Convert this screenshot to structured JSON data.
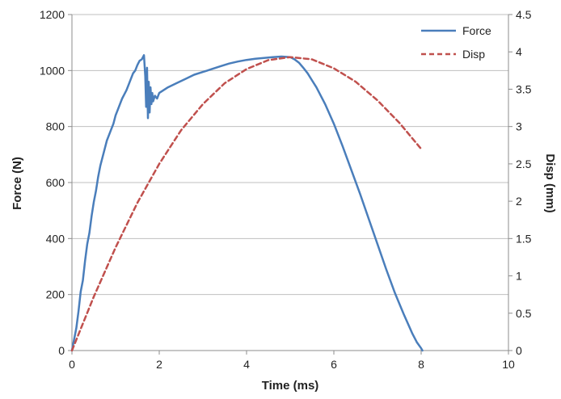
{
  "chart_data": {
    "type": "line",
    "xlabel": "Time (ms)",
    "ylabel": "Force (N)",
    "y2label": "Disp (mm)",
    "xlim": [
      0,
      10
    ],
    "ylim": [
      0,
      1200
    ],
    "y2lim": [
      0,
      4.5
    ],
    "xticks": [
      0,
      2,
      4,
      6,
      8,
      10
    ],
    "yticks": [
      0,
      200,
      400,
      600,
      800,
      1000,
      1200
    ],
    "y2ticks": [
      "0",
      "0.5",
      "1",
      "1.5",
      "2",
      "2.5",
      "3",
      "3.5",
      "4",
      "4.5"
    ],
    "grid": "horizontal",
    "legend_position": "top-right",
    "colors": {
      "force": "#4a7ebb",
      "disp": "#c0504d",
      "grid": "#bfbfbf",
      "axis": "#8c8c8c"
    },
    "series": [
      {
        "name": "Force",
        "axis": "left",
        "style": "solid",
        "x": [
          0,
          0.05,
          0.1,
          0.15,
          0.2,
          0.25,
          0.3,
          0.35,
          0.4,
          0.45,
          0.5,
          0.55,
          0.6,
          0.65,
          0.7,
          0.75,
          0.8,
          0.85,
          0.9,
          0.95,
          1.0,
          1.05,
          1.1,
          1.15,
          1.2,
          1.25,
          1.3,
          1.35,
          1.4,
          1.45,
          1.5,
          1.55,
          1.6,
          1.65,
          1.68,
          1.7,
          1.72,
          1.74,
          1.76,
          1.78,
          1.8,
          1.82,
          1.84,
          1.86,
          1.9,
          1.95,
          2.0,
          2.2,
          2.4,
          2.6,
          2.8,
          3.0,
          3.2,
          3.4,
          3.6,
          3.8,
          4.0,
          4.2,
          4.4,
          4.6,
          4.8,
          5.0,
          5.1,
          5.2,
          5.3,
          5.4,
          5.5,
          5.6,
          5.8,
          6.0,
          6.2,
          6.4,
          6.6,
          6.8,
          7.0,
          7.2,
          7.4,
          7.6,
          7.8,
          7.9,
          8.0,
          8.03
        ],
        "values": [
          0,
          40,
          80,
          140,
          210,
          250,
          320,
          380,
          420,
          480,
          530,
          570,
          620,
          660,
          690,
          720,
          750,
          770,
          790,
          810,
          840,
          860,
          880,
          900,
          915,
          930,
          950,
          970,
          990,
          1000,
          1020,
          1035,
          1040,
          1055,
          980,
          870,
          1010,
          830,
          960,
          850,
          940,
          880,
          920,
          890,
          910,
          900,
          920,
          940,
          955,
          970,
          985,
          995,
          1005,
          1015,
          1025,
          1032,
          1038,
          1042,
          1045,
          1048,
          1050,
          1048,
          1040,
          1028,
          1010,
          990,
          965,
          940,
          880,
          810,
          730,
          645,
          560,
          470,
          380,
          290,
          205,
          130,
          60,
          30,
          8,
          0
        ]
      },
      {
        "name": "Disp",
        "axis": "right",
        "style": "dashed",
        "x": [
          0,
          0.5,
          1.0,
          1.5,
          2.0,
          2.5,
          3.0,
          3.5,
          4.0,
          4.5,
          5.0,
          5.5,
          6.0,
          6.5,
          7.0,
          7.5,
          8.0
        ],
        "values": [
          0,
          0.72,
          1.38,
          1.98,
          2.5,
          2.95,
          3.3,
          3.58,
          3.77,
          3.89,
          3.93,
          3.9,
          3.78,
          3.6,
          3.35,
          3.05,
          2.7
        ]
      }
    ]
  }
}
